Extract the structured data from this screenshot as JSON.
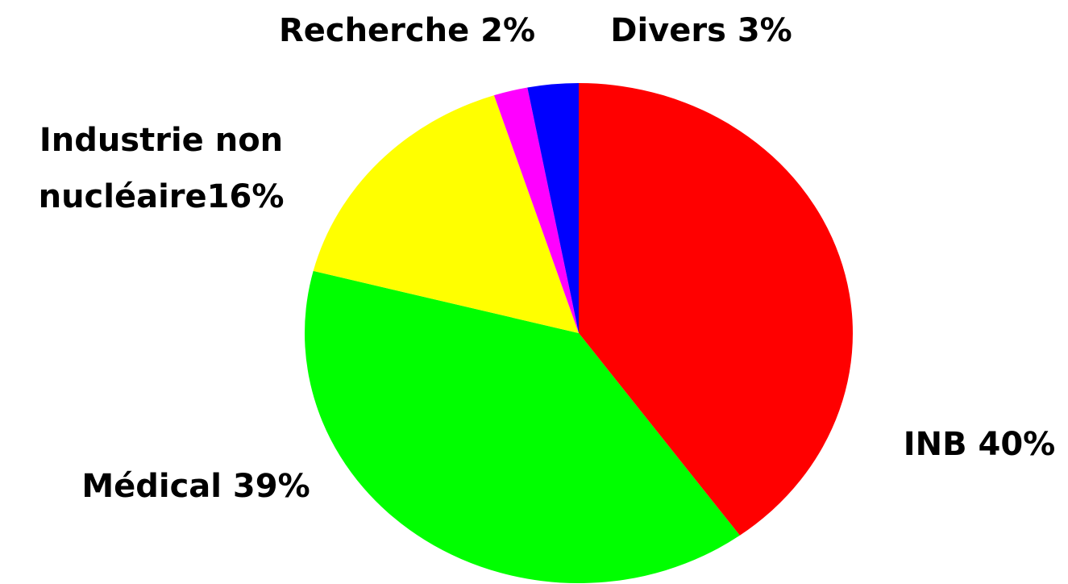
{
  "chart_data": {
    "type": "pie",
    "values": [
      40,
      39,
      16,
      2,
      3
    ],
    "value_labels": [
      "INB 40%",
      "Médical 39%",
      [
        "Industrie non",
        "nucléaire16%"
      ],
      "Recherche 2%",
      "Divers 3%"
    ],
    "colors": [
      "#ff0000",
      "#00ff00",
      "#ffff00",
      "#ff00ff",
      "#0000ff"
    ]
  }
}
